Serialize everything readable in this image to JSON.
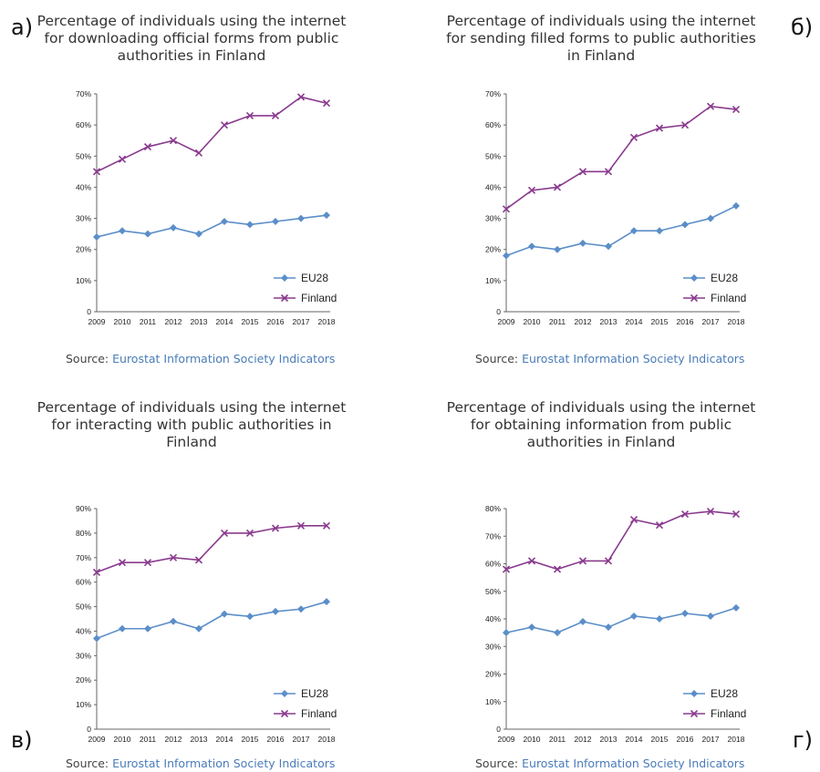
{
  "panels": [
    {
      "letter": "а)"
    },
    {
      "letter": "б)"
    },
    {
      "letter": "в)"
    },
    {
      "letter": "г)"
    }
  ],
  "source": {
    "label": "Source:",
    "link": "Eurostat Information Society Indicators"
  },
  "colors": {
    "eu28": "#5b8ec9",
    "finland": "#8a3a8e"
  },
  "chart_data": [
    {
      "type": "line",
      "title": "Percentage of individuals using the internet for downloading official forms from public authorities in Finland",
      "x": [
        "2009",
        "2010",
        "2011",
        "2012",
        "2013",
        "2014",
        "2015",
        "2016",
        "2017",
        "2018"
      ],
      "ylim": [
        0,
        70
      ],
      "yticks": [
        0,
        10,
        20,
        30,
        40,
        50,
        60,
        70
      ],
      "ytick_labels": [
        "0",
        "10%",
        "20%",
        "30%",
        "40%",
        "50%",
        "60%",
        "70%"
      ],
      "legend": "right",
      "series": [
        {
          "name": "EU28",
          "values": [
            24,
            26,
            25,
            27,
            25,
            29,
            28,
            29,
            30,
            31
          ]
        },
        {
          "name": "Finland",
          "values": [
            45,
            49,
            53,
            55,
            51,
            60,
            63,
            63,
            69,
            67
          ]
        }
      ]
    },
    {
      "type": "line",
      "title": "Percentage of individuals using the internet for sending filled forms to public authorities in Finland",
      "x": [
        "2009",
        "2010",
        "2011",
        "2012",
        "2013",
        "2014",
        "2015",
        "2016",
        "2017",
        "2018"
      ],
      "ylim": [
        0,
        70
      ],
      "yticks": [
        0,
        10,
        20,
        30,
        40,
        50,
        60,
        70
      ],
      "ytick_labels": [
        "0",
        "10%",
        "20%",
        "30%",
        "40%",
        "50%",
        "60%",
        "70%"
      ],
      "legend": "right",
      "series": [
        {
          "name": "EU28",
          "values": [
            18,
            21,
            20,
            22,
            21,
            26,
            26,
            28,
            30,
            34
          ]
        },
        {
          "name": "Finland",
          "values": [
            33,
            39,
            40,
            45,
            45,
            56,
            59,
            60,
            66,
            65
          ]
        }
      ]
    },
    {
      "type": "line",
      "title": "Percentage of individuals using the internet for interacting with public authorities in Finland",
      "x": [
        "2009",
        "2010",
        "2011",
        "2012",
        "2013",
        "2014",
        "2015",
        "2016",
        "2017",
        "2018"
      ],
      "ylim": [
        0,
        90
      ],
      "yticks": [
        0,
        10,
        20,
        30,
        40,
        50,
        60,
        70,
        80,
        90
      ],
      "ytick_labels": [
        "0",
        "10%",
        "20%",
        "30%",
        "40%",
        "50%",
        "60%",
        "70%",
        "80%",
        "90%"
      ],
      "legend": "right",
      "series": [
        {
          "name": "EU28",
          "values": [
            37,
            41,
            41,
            44,
            41,
            47,
            46,
            48,
            49,
            52
          ]
        },
        {
          "name": "Finland",
          "values": [
            64,
            68,
            68,
            70,
            69,
            80,
            80,
            82,
            83,
            83
          ]
        }
      ]
    },
    {
      "type": "line",
      "title": "Percentage of individuals using the internet for obtaining information from public authorities in Finland",
      "x": [
        "2009",
        "2010",
        "2011",
        "2012",
        "2013",
        "2014",
        "2015",
        "2016",
        "2017",
        "2018"
      ],
      "ylim": [
        0,
        80
      ],
      "yticks": [
        0,
        10,
        20,
        30,
        40,
        50,
        60,
        70,
        80
      ],
      "ytick_labels": [
        "0",
        "10%",
        "20%",
        "30%",
        "40%",
        "50%",
        "60%",
        "70%",
        "80%"
      ],
      "legend": "right",
      "series": [
        {
          "name": "EU28",
          "values": [
            35,
            37,
            35,
            39,
            37,
            41,
            40,
            42,
            41,
            44
          ]
        },
        {
          "name": "Finland",
          "values": [
            58,
            61,
            58,
            61,
            61,
            76,
            74,
            78,
            79,
            78
          ]
        }
      ]
    }
  ]
}
